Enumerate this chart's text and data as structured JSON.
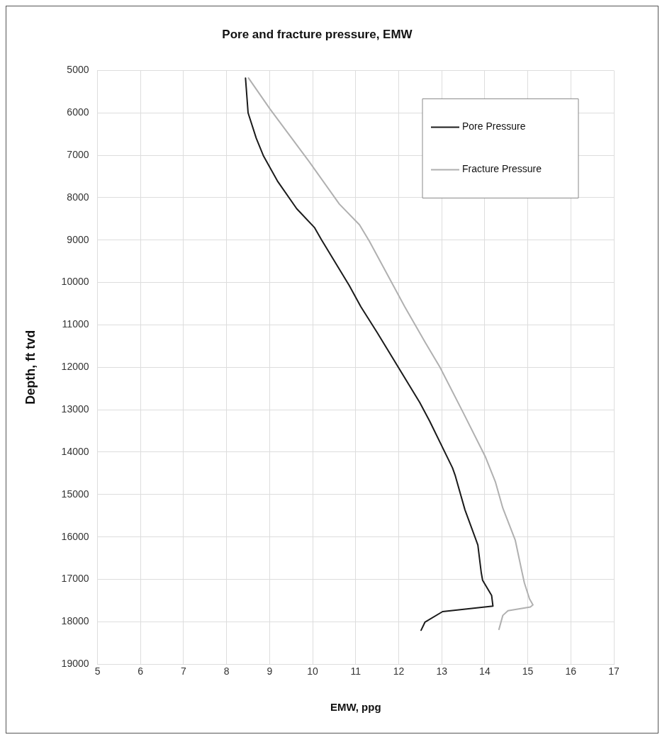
{
  "chart_data": {
    "type": "line",
    "title": "Pore and fracture pressure, EMW",
    "xlabel": "EMW, ppg",
    "ylabel": "Depth, ft tvd",
    "xlim": [
      5,
      17
    ],
    "xticks": [
      5,
      6,
      7,
      8,
      9,
      10,
      11,
      12,
      13,
      14,
      15,
      16,
      17
    ],
    "ylim": [
      19000,
      5000
    ],
    "yticks": [
      5000,
      6000,
      7000,
      8000,
      9000,
      10000,
      11000,
      12000,
      13000,
      14000,
      15000,
      16000,
      17000,
      18000,
      19000
    ],
    "grid": true,
    "legend": "top right",
    "marker": "none",
    "line_style": "solid",
    "series": [
      {
        "name": "Pore Pressure",
        "color": "#1a1a1a",
        "x": [
          8.44,
          8.5,
          8.69,
          8.86,
          9.19,
          9.63,
          10.04,
          10.21,
          10.85,
          11.12,
          11.5,
          12.49,
          12.72,
          13.25,
          13.31,
          13.54,
          13.84,
          13.92,
          13.95,
          14.16,
          14.19,
          13.02,
          12.61,
          12.52
        ],
        "values": [
          5180,
          6000,
          6600,
          7020,
          7620,
          8260,
          8700,
          9000,
          10070,
          10570,
          11180,
          12830,
          13270,
          14370,
          14540,
          15360,
          16190,
          16850,
          17020,
          17380,
          17630,
          17760,
          18010,
          18200
        ]
      },
      {
        "name": "Fracture Pressure",
        "color": "#b0b0b0",
        "x": [
          8.51,
          9.01,
          9.92,
          10.62,
          11.09,
          11.32,
          12.14,
          12.61,
          12.96,
          13.49,
          14.01,
          14.25,
          14.42,
          14.71,
          14.86,
          14.92,
          15.04,
          15.12,
          15.06,
          14.54,
          14.42,
          14.33
        ],
        "values": [
          5180,
          5910,
          7150,
          8150,
          8640,
          9030,
          10570,
          11400,
          12000,
          13050,
          14100,
          14710,
          15320,
          16080,
          16800,
          17080,
          17460,
          17600,
          17650,
          17740,
          17850,
          18180
        ]
      }
    ]
  }
}
